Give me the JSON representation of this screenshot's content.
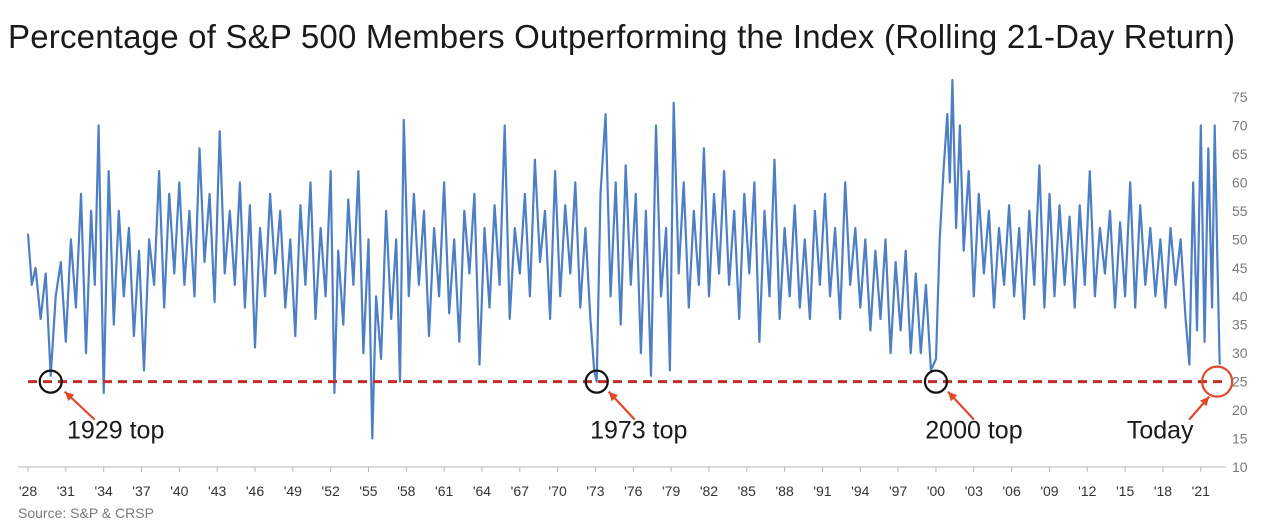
{
  "chart_data": {
    "type": "line",
    "title": "Percentage of S&P 500 Members Outperforming the Index (Rolling 21-Day Return)",
    "source": "Source: S&P & CRSP",
    "xlim": [
      1928,
      2023
    ],
    "ylim": [
      10,
      78
    ],
    "y_ticks": [
      75,
      70,
      65,
      60,
      55,
      50,
      45,
      40,
      35,
      30,
      25,
      20,
      15,
      10
    ],
    "y_axis_position": "right",
    "x_ticks": [
      {
        "year": 1928,
        "label": "'28"
      },
      {
        "year": 1931,
        "label": "'31"
      },
      {
        "year": 1934,
        "label": "'34"
      },
      {
        "year": 1937,
        "label": "'37"
      },
      {
        "year": 1940,
        "label": "'40"
      },
      {
        "year": 1943,
        "label": "'43"
      },
      {
        "year": 1946,
        "label": "'46"
      },
      {
        "year": 1949,
        "label": "'49"
      },
      {
        "year": 1952,
        "label": "'52"
      },
      {
        "year": 1955,
        "label": "'55"
      },
      {
        "year": 1958,
        "label": "'58"
      },
      {
        "year": 1961,
        "label": "'61"
      },
      {
        "year": 1964,
        "label": "'64"
      },
      {
        "year": 1967,
        "label": "'67"
      },
      {
        "year": 1970,
        "label": "'70"
      },
      {
        "year": 1973,
        "label": "'73"
      },
      {
        "year": 1976,
        "label": "'76"
      },
      {
        "year": 1979,
        "label": "'79"
      },
      {
        "year": 1982,
        "label": "'82"
      },
      {
        "year": 1985,
        "label": "'85"
      },
      {
        "year": 1988,
        "label": "'88"
      },
      {
        "year": 1991,
        "label": "'91"
      },
      {
        "year": 1994,
        "label": "'94"
      },
      {
        "year": 1997,
        "label": "'97"
      },
      {
        "year": 2000,
        "label": "'00"
      },
      {
        "year": 2003,
        "label": "'03"
      },
      {
        "year": 2006,
        "label": "'06"
      },
      {
        "year": 2009,
        "label": "'09"
      },
      {
        "year": 2012,
        "label": "'12"
      },
      {
        "year": 2015,
        "label": "'15"
      },
      {
        "year": 2018,
        "label": "'18"
      },
      {
        "year": 2021,
        "label": "'21"
      }
    ],
    "reference_line": {
      "y": 25,
      "color": "#c0302a",
      "style": "dashed"
    },
    "annotations": [
      {
        "label": "1929 top",
        "x": 1929.8,
        "y": 25,
        "marker_color": "#111111"
      },
      {
        "label": "1973 top",
        "x": 1973.1,
        "y": 25,
        "marker_color": "#111111"
      },
      {
        "label": "2000 top",
        "x": 2000.0,
        "y": 25,
        "marker_color": "#111111"
      },
      {
        "label": "Today",
        "x": 2022.3,
        "y": 25,
        "marker_color": "#e0482a"
      }
    ],
    "series": [
      {
        "color": "#4e7fc4",
        "points": [
          [
            1928.0,
            51
          ],
          [
            1928.3,
            42
          ],
          [
            1928.6,
            45
          ],
          [
            1929.0,
            36
          ],
          [
            1929.4,
            44
          ],
          [
            1929.8,
            26
          ],
          [
            1930.2,
            40
          ],
          [
            1930.6,
            46
          ],
          [
            1931.0,
            32
          ],
          [
            1931.4,
            50
          ],
          [
            1931.8,
            38
          ],
          [
            1932.2,
            58
          ],
          [
            1932.6,
            30
          ],
          [
            1933.0,
            55
          ],
          [
            1933.3,
            42
          ],
          [
            1933.6,
            70
          ],
          [
            1934.0,
            23
          ],
          [
            1934.4,
            62
          ],
          [
            1934.8,
            35
          ],
          [
            1935.2,
            55
          ],
          [
            1935.6,
            40
          ],
          [
            1936.0,
            52
          ],
          [
            1936.4,
            33
          ],
          [
            1936.8,
            48
          ],
          [
            1937.2,
            27
          ],
          [
            1937.6,
            50
          ],
          [
            1938.0,
            42
          ],
          [
            1938.4,
            62
          ],
          [
            1938.8,
            38
          ],
          [
            1939.2,
            58
          ],
          [
            1939.6,
            44
          ],
          [
            1940.0,
            60
          ],
          [
            1940.4,
            42
          ],
          [
            1940.8,
            55
          ],
          [
            1941.2,
            40
          ],
          [
            1941.6,
            66
          ],
          [
            1942.0,
            46
          ],
          [
            1942.4,
            58
          ],
          [
            1942.8,
            39
          ],
          [
            1943.2,
            69
          ],
          [
            1943.6,
            44
          ],
          [
            1944.0,
            55
          ],
          [
            1944.4,
            42
          ],
          [
            1944.8,
            60
          ],
          [
            1945.2,
            38
          ],
          [
            1945.6,
            56
          ],
          [
            1946.0,
            31
          ],
          [
            1946.4,
            52
          ],
          [
            1946.8,
            40
          ],
          [
            1947.2,
            58
          ],
          [
            1947.6,
            44
          ],
          [
            1948.0,
            55
          ],
          [
            1948.4,
            38
          ],
          [
            1948.8,
            50
          ],
          [
            1949.2,
            33
          ],
          [
            1949.6,
            56
          ],
          [
            1950.0,
            42
          ],
          [
            1950.4,
            60
          ],
          [
            1950.8,
            36
          ],
          [
            1951.2,
            52
          ],
          [
            1951.6,
            40
          ],
          [
            1952.0,
            62
          ],
          [
            1952.3,
            23
          ],
          [
            1952.6,
            48
          ],
          [
            1953.0,
            35
          ],
          [
            1953.4,
            57
          ],
          [
            1953.8,
            42
          ],
          [
            1954.2,
            62
          ],
          [
            1954.6,
            30
          ],
          [
            1955.0,
            50
          ],
          [
            1955.3,
            15
          ],
          [
            1955.6,
            40
          ],
          [
            1956.0,
            29
          ],
          [
            1956.4,
            55
          ],
          [
            1956.8,
            36
          ],
          [
            1957.2,
            50
          ],
          [
            1957.5,
            25
          ],
          [
            1957.8,
            71
          ],
          [
            1958.2,
            40
          ],
          [
            1958.6,
            58
          ],
          [
            1959.0,
            42
          ],
          [
            1959.4,
            55
          ],
          [
            1959.8,
            33
          ],
          [
            1960.2,
            52
          ],
          [
            1960.6,
            40
          ],
          [
            1961.0,
            60
          ],
          [
            1961.4,
            37
          ],
          [
            1961.8,
            50
          ],
          [
            1962.2,
            32
          ],
          [
            1962.6,
            55
          ],
          [
            1963.0,
            44
          ],
          [
            1963.4,
            58
          ],
          [
            1963.8,
            28
          ],
          [
            1964.2,
            52
          ],
          [
            1964.6,
            38
          ],
          [
            1965.0,
            56
          ],
          [
            1965.4,
            42
          ],
          [
            1965.8,
            70
          ],
          [
            1966.2,
            36
          ],
          [
            1966.6,
            52
          ],
          [
            1967.0,
            44
          ],
          [
            1967.4,
            58
          ],
          [
            1967.8,
            40
          ],
          [
            1968.2,
            64
          ],
          [
            1968.6,
            46
          ],
          [
            1969.0,
            55
          ],
          [
            1969.4,
            36
          ],
          [
            1969.8,
            62
          ],
          [
            1970.2,
            40
          ],
          [
            1970.6,
            56
          ],
          [
            1971.0,
            44
          ],
          [
            1971.4,
            60
          ],
          [
            1971.8,
            38
          ],
          [
            1972.2,
            52
          ],
          [
            1972.6,
            36
          ],
          [
            1972.9,
            27
          ],
          [
            1973.1,
            25
          ],
          [
            1973.4,
            58
          ],
          [
            1973.8,
            72
          ],
          [
            1974.2,
            40
          ],
          [
            1974.6,
            60
          ],
          [
            1975.0,
            35
          ],
          [
            1975.4,
            63
          ],
          [
            1975.8,
            42
          ],
          [
            1976.2,
            58
          ],
          [
            1976.6,
            30
          ],
          [
            1977.0,
            55
          ],
          [
            1977.4,
            26
          ],
          [
            1977.8,
            70
          ],
          [
            1978.2,
            40
          ],
          [
            1978.6,
            52
          ],
          [
            1978.9,
            27
          ],
          [
            1979.2,
            74
          ],
          [
            1979.6,
            44
          ],
          [
            1980.0,
            60
          ],
          [
            1980.4,
            38
          ],
          [
            1980.8,
            55
          ],
          [
            1981.2,
            42
          ],
          [
            1981.6,
            66
          ],
          [
            1982.0,
            40
          ],
          [
            1982.4,
            58
          ],
          [
            1982.8,
            44
          ],
          [
            1983.2,
            62
          ],
          [
            1983.6,
            42
          ],
          [
            1984.0,
            55
          ],
          [
            1984.4,
            36
          ],
          [
            1984.8,
            58
          ],
          [
            1985.2,
            44
          ],
          [
            1985.6,
            60
          ],
          [
            1986.0,
            32
          ],
          [
            1986.4,
            55
          ],
          [
            1986.8,
            40
          ],
          [
            1987.2,
            64
          ],
          [
            1987.6,
            36
          ],
          [
            1988.0,
            52
          ],
          [
            1988.4,
            40
          ],
          [
            1988.8,
            56
          ],
          [
            1989.2,
            38
          ],
          [
            1989.6,
            50
          ],
          [
            1990.0,
            36
          ],
          [
            1990.4,
            55
          ],
          [
            1990.8,
            42
          ],
          [
            1991.2,
            58
          ],
          [
            1991.6,
            40
          ],
          [
            1992.0,
            52
          ],
          [
            1992.4,
            36
          ],
          [
            1992.8,
            60
          ],
          [
            1993.2,
            42
          ],
          [
            1993.6,
            52
          ],
          [
            1994.0,
            38
          ],
          [
            1994.4,
            50
          ],
          [
            1994.8,
            34
          ],
          [
            1995.2,
            48
          ],
          [
            1995.6,
            36
          ],
          [
            1996.0,
            50
          ],
          [
            1996.4,
            30
          ],
          [
            1996.8,
            46
          ],
          [
            1997.2,
            34
          ],
          [
            1997.6,
            48
          ],
          [
            1998.0,
            30
          ],
          [
            1998.4,
            44
          ],
          [
            1998.8,
            30
          ],
          [
            1999.2,
            42
          ],
          [
            1999.6,
            27
          ],
          [
            2000.0,
            29
          ],
          [
            2000.3,
            50
          ],
          [
            2000.6,
            62
          ],
          [
            2000.9,
            72
          ],
          [
            2001.1,
            60
          ],
          [
            2001.3,
            78
          ],
          [
            2001.6,
            52
          ],
          [
            2001.9,
            70
          ],
          [
            2002.2,
            48
          ],
          [
            2002.6,
            62
          ],
          [
            2003.0,
            40
          ],
          [
            2003.4,
            58
          ],
          [
            2003.8,
            44
          ],
          [
            2004.2,
            55
          ],
          [
            2004.6,
            38
          ],
          [
            2005.0,
            52
          ],
          [
            2005.4,
            42
          ],
          [
            2005.8,
            56
          ],
          [
            2006.2,
            40
          ],
          [
            2006.6,
            52
          ],
          [
            2007.0,
            36
          ],
          [
            2007.4,
            55
          ],
          [
            2007.8,
            42
          ],
          [
            2008.2,
            63
          ],
          [
            2008.6,
            38
          ],
          [
            2009.0,
            58
          ],
          [
            2009.4,
            40
          ],
          [
            2009.8,
            56
          ],
          [
            2010.2,
            42
          ],
          [
            2010.6,
            54
          ],
          [
            2011.0,
            38
          ],
          [
            2011.4,
            56
          ],
          [
            2011.8,
            42
          ],
          [
            2012.2,
            62
          ],
          [
            2012.6,
            40
          ],
          [
            2013.0,
            52
          ],
          [
            2013.4,
            44
          ],
          [
            2013.8,
            55
          ],
          [
            2014.2,
            38
          ],
          [
            2014.6,
            53
          ],
          [
            2015.0,
            40
          ],
          [
            2015.4,
            60
          ],
          [
            2015.8,
            38
          ],
          [
            2016.2,
            56
          ],
          [
            2016.6,
            42
          ],
          [
            2017.0,
            52
          ],
          [
            2017.4,
            40
          ],
          [
            2017.8,
            50
          ],
          [
            2018.2,
            38
          ],
          [
            2018.6,
            52
          ],
          [
            2019.0,
            42
          ],
          [
            2019.4,
            50
          ],
          [
            2019.8,
            36
          ],
          [
            2020.1,
            28
          ],
          [
            2020.4,
            60
          ],
          [
            2020.7,
            34
          ],
          [
            2021.0,
            70
          ],
          [
            2021.3,
            32
          ],
          [
            2021.6,
            66
          ],
          [
            2021.9,
            38
          ],
          [
            2022.1,
            70
          ],
          [
            2022.3,
            48
          ],
          [
            2022.5,
            28
          ]
        ]
      }
    ]
  }
}
